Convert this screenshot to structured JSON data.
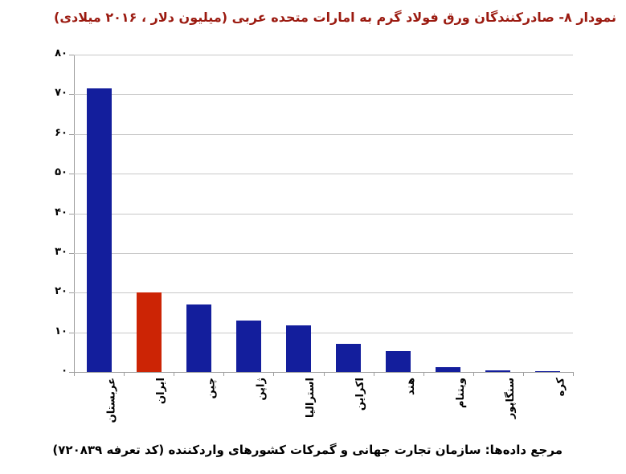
{
  "title": {
    "text": "نمودار ۸- صادرکنندگان ورق فولاد گرم به امارات متحده عربی (میلیون دلار ، ۲۰۱۶ میلادی)"
  },
  "footer": {
    "text": "مرجع داده‌ها: سازمان تجارت جهانی و گمرکات کشورهای واردکننده (کد تعرفه ۷۲۰۸۳۹)"
  },
  "chart_data": {
    "type": "bar",
    "title": "نمودار ۸- صادرکنندگان ورق فولاد گرم به امارات متحده عربی (میلیون دلار ، ۲۰۱۶ میلادی)",
    "categories": [
      "عربستان",
      "ایران",
      "چین",
      "ژاپن",
      "استرالیا",
      "اکراین",
      "هند",
      "ویتنام",
      "سنگاپور",
      "کره"
    ],
    "category_ids": [
      "saudi-arabia",
      "iran",
      "china",
      "japan",
      "australia",
      "ukraine",
      "india",
      "vietnam",
      "singapore",
      "korea"
    ],
    "values": [
      71.5,
      20.1,
      17.0,
      12.9,
      11.8,
      7.1,
      5.2,
      1.2,
      0.5,
      0.2
    ],
    "highlight_index": 1,
    "unit": "میلیون دلار",
    "year": "۲۰۱۶",
    "ylim": [
      0,
      80
    ],
    "y_tick_step": 10,
    "y_tick_values": [
      0,
      10,
      20,
      30,
      40,
      50,
      60,
      70,
      80
    ],
    "y_tick_labels": [
      "۰",
      "۱۰",
      "۲۰",
      "۳۰",
      "۴۰",
      "۵۰",
      "۶۰",
      "۷۰",
      "۸۰"
    ],
    "grid": "horizontal",
    "legend": "none",
    "xlabel": "",
    "ylabel": ""
  },
  "colors": {
    "bar_default": "#131E9C",
    "bar_highlight": "#CC2405",
    "title": "#9B1A10",
    "grid": "#C8C8C8",
    "axis": "#9E9E9E",
    "text": "#000000",
    "background": "#FFFFFF"
  }
}
